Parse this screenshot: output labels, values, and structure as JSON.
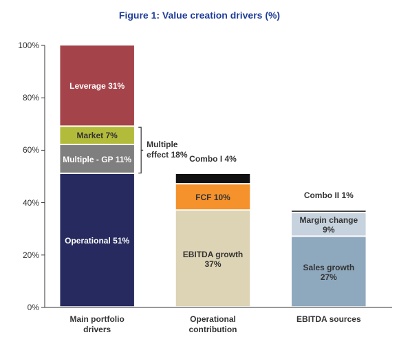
{
  "chart_data": {
    "type": "stacked_bar",
    "title": "Figure 1: Value creation drivers (%)",
    "categories": [
      "Main portfolio drivers",
      "Operational contribution",
      "EBITDA sources"
    ],
    "series": [
      {
        "name": "Operational",
        "color": "#262a5e",
        "values": [
          51,
          null,
          null
        ],
        "value_labels": [
          "51%",
          null,
          null
        ]
      },
      {
        "name": "Multiple - GP",
        "color": "#7f7f7f",
        "values": [
          11,
          null,
          null
        ],
        "value_labels": [
          "11%",
          null,
          null
        ]
      },
      {
        "name": "Market",
        "color": "#b3bb3a",
        "values": [
          7,
          null,
          null
        ],
        "value_labels": [
          "7%",
          null,
          null
        ]
      },
      {
        "name": "Leverage",
        "color": "#a5434a",
        "values": [
          31,
          null,
          null
        ],
        "value_labels": [
          "31%",
          null,
          null
        ]
      },
      {
        "name": "EBITDA growth",
        "color": "#ddd3b5",
        "values": [
          null,
          37,
          null
        ],
        "value_labels": [
          null,
          "37%",
          null
        ]
      },
      {
        "name": "FCF",
        "color": "#f5922c",
        "values": [
          null,
          10,
          null
        ],
        "value_labels": [
          null,
          "10%",
          null
        ]
      },
      {
        "name": "Combo I",
        "color": "#111111",
        "values": [
          null,
          4,
          null
        ],
        "value_labels": [
          null,
          "4%",
          null
        ]
      },
      {
        "name": "Sales growth",
        "color": "#8ea8be",
        "values": [
          null,
          null,
          27
        ],
        "value_labels": [
          null,
          null,
          "27%"
        ]
      },
      {
        "name": "Margin change",
        "color": "#c6d2dd",
        "values": [
          null,
          null,
          9
        ],
        "value_labels": [
          null,
          null,
          "9%"
        ]
      },
      {
        "name": "Combo II",
        "color": "#3a3a3a",
        "values": [
          null,
          null,
          1
        ],
        "value_labels": [
          null,
          null,
          "1%"
        ]
      }
    ],
    "annotation": "Multiple effect 18%",
    "ylim": [
      0,
      100
    ],
    "yticks": [
      {
        "value": 0,
        "label": "0%"
      },
      {
        "value": 20,
        "label": "20%"
      },
      {
        "value": 40,
        "label": "40%"
      },
      {
        "value": 60,
        "label": "60%"
      },
      {
        "value": 80,
        "label": "80%"
      },
      {
        "value": 100,
        "label": "100%"
      }
    ]
  }
}
